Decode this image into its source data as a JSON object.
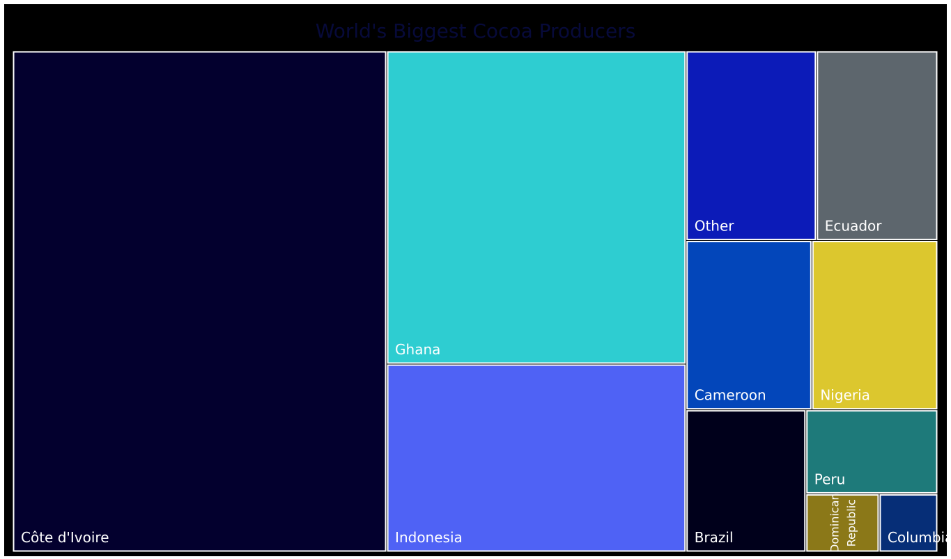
{
  "chart_data": {
    "type": "treemap",
    "title": "World's Biggest Cocoa Producers",
    "items": [
      {
        "label": "Côte d'Ivoire",
        "value": 2200,
        "color": "#03002e",
        "rotated": false
      },
      {
        "label": "Ghana",
        "value": 1100,
        "color": "#2ecdd1",
        "rotated": false
      },
      {
        "label": "Indonesia",
        "value": 660,
        "color": "#4f62f5",
        "rotated": false
      },
      {
        "label": "Other",
        "value": 290,
        "color": "#0c1bb8",
        "rotated": false
      },
      {
        "label": "Ecuador",
        "value": 270,
        "color": "#5d666d",
        "rotated": false
      },
      {
        "label": "Cameroon",
        "value": 250,
        "color": "#0346ba",
        "rotated": false
      },
      {
        "label": "Nigeria",
        "value": 250,
        "color": "#dcc72e",
        "rotated": false
      },
      {
        "label": "Brazil",
        "value": 200,
        "color": "#00001b",
        "rotated": false
      },
      {
        "label": "Peru",
        "value": 130,
        "color": "#1e7a7a",
        "rotated": false
      },
      {
        "label": "Dominican Republic",
        "value": 50,
        "color": "#8b7818",
        "rotated": true
      },
      {
        "label": "Columbia",
        "value": 40,
        "color": "#062e77",
        "rotated": false
      }
    ]
  }
}
